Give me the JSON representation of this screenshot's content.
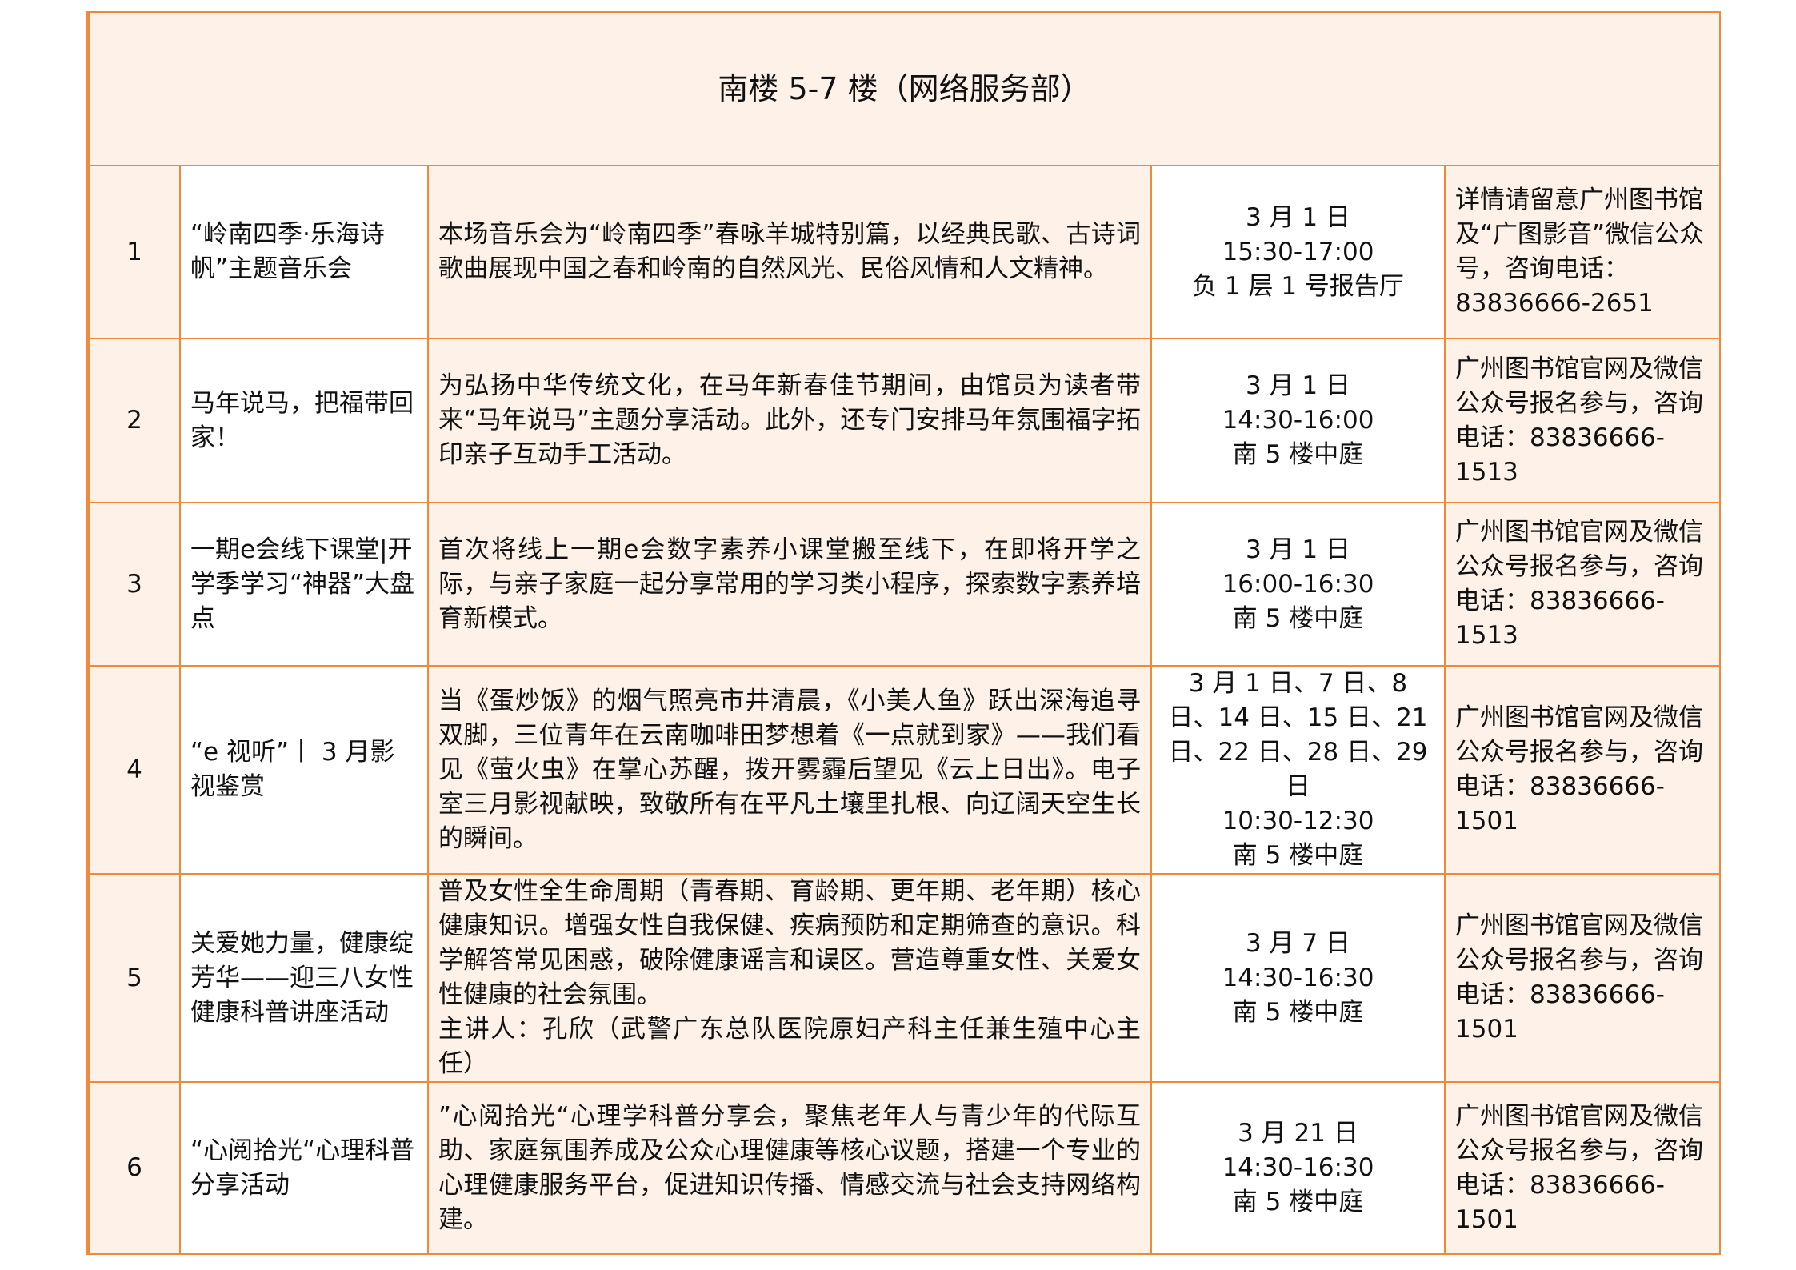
{
  "section_title": "南楼 5-7 楼（网络服务部）",
  "rows": [
    {
      "no": "1",
      "title": "“岭南四季·乐海诗帆”主题音乐会",
      "desc": "本场音乐会为“岭南四季”春咏羊城特别篇，以经典民歌、古诗词歌曲展现中国之春和岭南的自然风光、民俗风情和人文精神。",
      "when": "3 月 1 日\n15:30-17:00\n负 1 层 1 号报告厅",
      "contact": "详情请留意广州图书馆及“广图影音”微信公众号，咨询电话：83836666-2651"
    },
    {
      "no": "2",
      "title": "马年说马，把福带回家！",
      "desc": "为弘扬中华传统文化，在马年新春佳节期间，由馆员为读者带来“马年说马”主题分享活动。此外，还专门安排马年氛围福字拓印亲子互动手工活动。",
      "when": "3 月 1 日\n14:30-16:00\n南 5 楼中庭",
      "contact": "广州图书馆官网及微信公众号报名参与，咨询电话：83836666-1513"
    },
    {
      "no": "3",
      "title": "一期e会线下课堂|开学季学习“神器”大盘点",
      "desc": "首次将线上一期e会数字素养小课堂搬至线下，在即将开学之际，与亲子家庭一起分享常用的学习类小程序，探索数字素养培育新模式。",
      "when": "3 月 1 日\n16:00-16:30\n南 5 楼中庭",
      "contact": "广州图书馆官网及微信公众号报名参与，咨询电话：83836666-1513"
    },
    {
      "no": "4",
      "title": "“e 视听”丨 3 月影视鉴赏",
      "desc": "当《蛋炒饭》的烟气照亮市井清晨，《小美人鱼》跃出深海追寻双脚，三位青年在云南咖啡田梦想着《一点就到家》——我们看见《萤火虫》在掌心苏醒，拨开雾霾后望见《云上日出》。电子室三月影视献映，致敬所有在平凡土壤里扎根、向辽阔天空生长的瞬间。",
      "when": "3 月 1 日、7 日、8 日、14 日、15 日、21 日、22 日、28 日、29 日\n10:30-12:30\n南 5 楼中庭",
      "contact": "广州图书馆官网及微信公众号报名参与，咨询电话：83836666-1501"
    },
    {
      "no": "5",
      "title": "关爱她力量，健康绽芳华——迎三八女性健康科普讲座活动",
      "desc": "普及女性全生命周期（青春期、育龄期、更年期、老年期）核心健康知识。增强女性自我保健、疾病预防和定期筛查的意识。科学解答常见困惑，破除健康谣言和误区。营造尊重女性、关爱女性健康的社会氛围。",
      "desc2": "主讲人：孔欣（武警广东总队医院原妇产科主任兼生殖中心主任）",
      "when": "3 月 7 日\n14:30-16:30\n南 5 楼中庭",
      "contact": "广州图书馆官网及微信公众号报名参与，咨询电话：83836666-1501"
    },
    {
      "no": "6",
      "title": "“心阅拾光“心理科普分享活动",
      "desc": "”心阅拾光“心理学科普分享会，聚焦老年人与青少年的代际互助、家庭氛围养成及公众心理健康等核心议题，搭建一个专业的心理健康服务平台，促进知识传播、情感交流与社会支持网络构建。",
      "when": "3 月 21 日\n14:30-16:30\n南 5 楼中庭",
      "contact": "广州图书馆官网及微信公众号报名参与，咨询电话：83836666-1501"
    }
  ]
}
